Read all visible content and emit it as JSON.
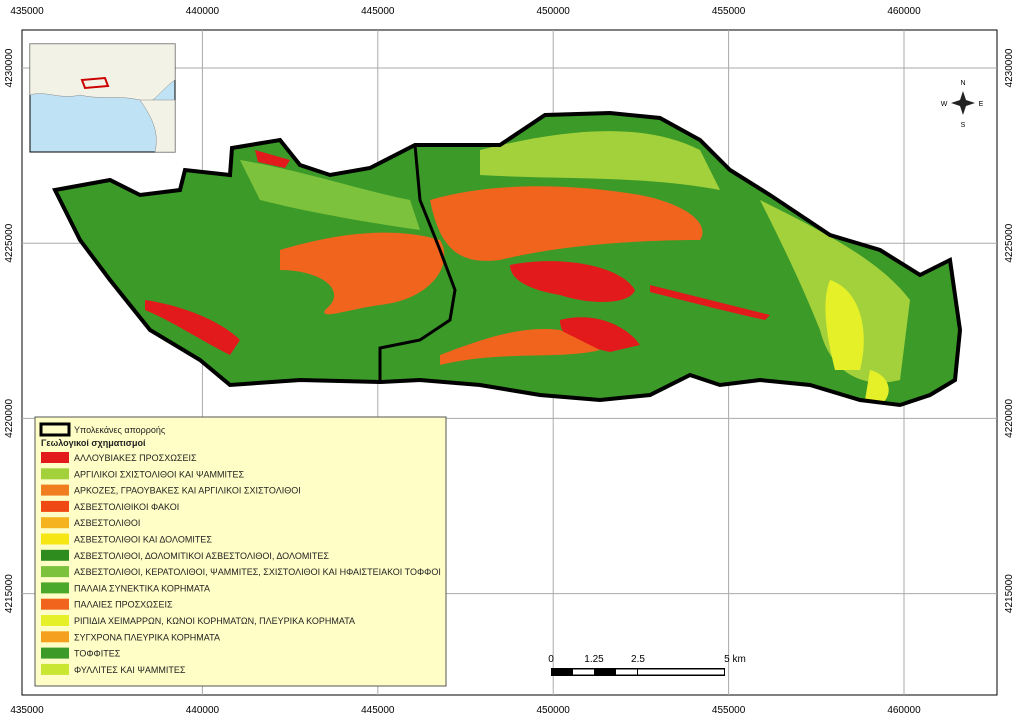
{
  "grid": {
    "x_labels": [
      "435000",
      "440000",
      "445000",
      "450000",
      "455000",
      "460000"
    ],
    "y_labels": [
      "4230000",
      "4225000",
      "4220000",
      "4215000"
    ]
  },
  "legend": {
    "boundary_label": "Υπολεκάνες απορροής",
    "title": "Γεωλογικοί σχηματισμοί",
    "items": [
      {
        "label": "ΑΛΛΟΥΒΙΑΚΕΣ ΠΡΟΣΧΩΣΕΙΣ",
        "color": "#e31a1c"
      },
      {
        "label": "ΑΡΓΙΛΙΚΟΙ ΣΧΙΣΤΟΛΙΘΟΙ ΚΑΙ ΨΑΜΜΙΤΕΣ",
        "color": "#a3d13c"
      },
      {
        "label": "ΑΡΚΟΖΕΣ, ΓΡΑΟΥΒΑΚΕΣ ΚΑΙ ΑΡΓΙΛΙΚΟΙ ΣΧΙΣΤΟΛΙΘΟΙ",
        "color": "#f07d1e"
      },
      {
        "label": "ΑΣΒΕΣΤΟΛΙΘΙΚΟΙ ΦΑΚΟΙ",
        "color": "#f04a14"
      },
      {
        "label": "ΑΣΒΕΣΤΟΛΙΘΟΙ",
        "color": "#f5b41e"
      },
      {
        "label": "ΑΣΒΕΣΤΟΛΙΘΟΙ ΚΑΙ ΔΟΛΟΜΙΤΕΣ",
        "color": "#f5e614"
      },
      {
        "label": "ΑΣΒΕΣΤΟΛΙΘΟΙ, ΔΟΛΟΜΙΤΙΚΟΙ ΑΣΒΕΣΤΟΛΙΘΟΙ, ΔΟΛΟΜΙΤΕΣ",
        "color": "#2e8c1e"
      },
      {
        "label": "ΑΣΒΕΣΤΟΛΙΘΟΙ, ΚΕΡΑΤΟΛΙΘΟΙ, ΨΑΜΜΙΤΕΣ, ΣΧΙΣΤΟΛΙΘΟΙ ΚΑΙ ΗΦΑΙΣΤΕΙΑΚΟΙ ΤΟΦΦΟΙ",
        "color": "#7cc23c"
      },
      {
        "label": "ΠΑΛΑΙΑ ΣΥΝΕΚΤΙΚΑ ΚΟΡΗΜΑΤΑ",
        "color": "#4aa82a"
      },
      {
        "label": "ΠΑΛΑΙΕΣ ΠΡΟΣΧΩΣΕΙΣ",
        "color": "#f0641e"
      },
      {
        "label": "ΡΙΠΙΔΙΑ ΧΕΙΜΑΡΡΩΝ, ΚΩΝΟΙ ΚΟΡΗΜΑΤΩΝ, ΠΛΕΥΡΙΚΑ ΚΟΡΗΜΑΤΑ",
        "color": "#e6f028"
      },
      {
        "label": "ΣΥΓΧΡΟΝΑ ΠΛΕΥΡΙΚΑ ΚΟΡΗΜΑΤΑ",
        "color": "#f5a01e"
      },
      {
        "label": "ΤΟΦΦΙΤΕΣ",
        "color": "#3c9a28"
      },
      {
        "label": "ΦΥΛΛΙΤΕΣ ΚΑΙ ΨΑΜΜΙΤΕΣ",
        "color": "#c8e632"
      }
    ]
  },
  "scale_bar": {
    "labels": [
      "0",
      "1.25",
      "2.5",
      "5 km"
    ]
  },
  "compass": {
    "north": "N",
    "south": "S",
    "east": "E",
    "west": "W"
  }
}
